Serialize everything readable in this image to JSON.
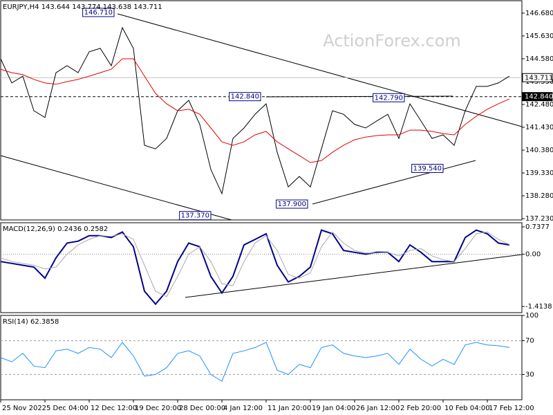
{
  "watermark": "ActionForex.com",
  "chart_data": [
    {
      "type": "line",
      "title": "EURJPY,H4  143.644 143.774 143.638 143.711",
      "x": [
        0,
        4,
        8,
        12,
        16,
        20,
        24,
        28,
        32,
        36,
        40,
        44,
        48,
        52,
        56,
        60,
        64,
        68,
        72,
        76,
        80,
        84,
        88,
        92,
        96,
        100,
        104,
        108,
        112,
        116,
        120,
        124,
        128,
        132,
        136,
        140,
        144,
        148,
        152,
        156,
        160,
        164,
        168,
        172,
        176,
        180,
        184
      ],
      "xlim": [
        0,
        188.5
      ],
      "ylim": [
        137.17,
        147.25
      ],
      "yticks": [
        {
          "value": 146.68,
          "label": "146.680"
        },
        {
          "value": 145.63,
          "label": "145.630"
        },
        {
          "value": 144.58,
          "label": "144.580"
        },
        {
          "value": 143.53,
          "label": "143.530"
        },
        {
          "value": 142.48,
          "label": "142.480"
        },
        {
          "value": 141.43,
          "label": "141.430"
        },
        {
          "value": 140.38,
          "label": "140.380"
        },
        {
          "value": 139.33,
          "label": "139.330"
        },
        {
          "value": 138.28,
          "label": "138.280"
        },
        {
          "value": 137.23,
          "label": "137.230"
        }
      ],
      "series": [
        {
          "color": "#000000",
          "width": 1,
          "values": [
            144.58,
            143.47,
            143.78,
            142.19,
            141.88,
            143.94,
            144.26,
            143.94,
            144.9,
            145.06,
            144.26,
            146.01,
            145.06,
            140.6,
            140.44,
            140.92,
            142.19,
            142.67,
            141.56,
            139.49,
            138.38,
            140.92,
            141.4,
            142.03,
            142.51,
            140.28,
            138.69,
            139.17,
            138.69,
            140.44,
            142.19,
            142.03,
            141.56,
            141.4,
            141.72,
            142.03,
            140.92,
            142.51,
            141.72,
            140.92,
            141.08,
            140.6,
            142.19,
            143.31,
            143.31,
            143.47,
            143.78
          ]
        },
        {
          "color": "#e00000",
          "width": 1,
          "values": [
            144.1,
            143.94,
            143.85,
            143.63,
            143.47,
            143.41,
            143.53,
            143.63,
            143.78,
            143.94,
            144.1,
            144.58,
            144.58,
            143.78,
            142.99,
            142.51,
            142.19,
            142.26,
            142.03,
            141.4,
            140.76,
            140.6,
            140.76,
            141.08,
            141.24,
            140.76,
            140.44,
            140.13,
            139.81,
            139.9,
            140.28,
            140.6,
            140.86,
            140.98,
            141.05,
            141.08,
            141.08,
            141.3,
            141.3,
            141.24,
            141.14,
            141.08,
            141.56,
            141.94,
            142.26,
            142.51,
            142.73
          ]
        }
      ],
      "price_markers": [
        {
          "value": 143.711,
          "label": "143.711",
          "style": "current"
        },
        {
          "value": 142.84,
          "label": "142.840",
          "style": "level"
        }
      ],
      "annotations": [
        {
          "x": 43,
          "value": 146.71,
          "label": "146.710"
        },
        {
          "x": 96,
          "value": 142.84,
          "label": "142.840"
        },
        {
          "x": 148,
          "value": 142.79,
          "label": "142.790"
        },
        {
          "x": 162,
          "value": 139.54,
          "label": "139.540"
        },
        {
          "x": 113,
          "value": 137.9,
          "label": "137.900"
        },
        {
          "x": 78,
          "value": 137.37,
          "label": "137.370"
        }
      ]
    },
    {
      "type": "line",
      "title": "MACD(12,26,9) 0.2436 0.2582",
      "x": [
        0,
        4,
        8,
        12,
        16,
        20,
        24,
        28,
        32,
        36,
        40,
        44,
        48,
        52,
        56,
        60,
        64,
        68,
        72,
        76,
        80,
        84,
        88,
        92,
        96,
        100,
        104,
        108,
        112,
        116,
        120,
        124,
        128,
        132,
        136,
        140,
        144,
        148,
        152,
        156,
        160,
        164,
        168,
        172,
        176,
        180,
        184
      ],
      "xlim": [
        0,
        188.5
      ],
      "ylim": [
        -1.58,
        0.85
      ],
      "yticks": [
        0.7377,
        {
          "value": 0,
          "label": "0.00"
        },
        -1.4138
      ],
      "zero_line": true,
      "series": [
        {
          "color": "#00008b",
          "width": 2,
          "values": [
            -0.2,
            -0.25,
            -0.3,
            -0.35,
            -0.65,
            -0.1,
            0.3,
            0.35,
            0.5,
            0.5,
            0.45,
            0.6,
            0.2,
            -1.0,
            -1.35,
            -1.0,
            -0.2,
            0.3,
            0.2,
            -0.6,
            -1.05,
            -0.6,
            0.25,
            0.4,
            0.55,
            -0.3,
            -0.75,
            -0.6,
            -0.35,
            0.65,
            0.55,
            0.1,
            0.05,
            0.0,
            0.05,
            0.05,
            -0.2,
            0.25,
            0.05,
            -0.2,
            -0.2,
            -0.2,
            0.45,
            0.65,
            0.55,
            0.3,
            0.25
          ]
        },
        {
          "color": "#a9a9a9",
          "width": 1,
          "values": [
            -0.1,
            -0.2,
            -0.25,
            -0.3,
            -0.4,
            -0.35,
            0.0,
            0.25,
            0.4,
            0.5,
            0.48,
            0.55,
            0.4,
            -0.3,
            -1.0,
            -1.15,
            -0.6,
            0.0,
            0.2,
            -0.2,
            -0.8,
            -0.85,
            -0.2,
            0.3,
            0.5,
            0.1,
            -0.55,
            -0.65,
            -0.5,
            0.2,
            0.6,
            0.3,
            0.1,
            0.03,
            0.03,
            0.05,
            -0.05,
            0.1,
            0.15,
            -0.05,
            -0.15,
            -0.2,
            0.15,
            0.55,
            0.6,
            0.4,
            0.26
          ]
        }
      ]
    },
    {
      "type": "line",
      "title": "RSI(14) 62.3858",
      "x": [
        0,
        4,
        8,
        12,
        16,
        20,
        24,
        28,
        32,
        36,
        40,
        44,
        48,
        52,
        56,
        60,
        64,
        68,
        72,
        76,
        80,
        84,
        88,
        92,
        96,
        100,
        104,
        108,
        112,
        116,
        120,
        124,
        128,
        132,
        136,
        140,
        144,
        148,
        152,
        156,
        160,
        164,
        168,
        172,
        176,
        180,
        184
      ],
      "xlim": [
        0,
        188.5
      ],
      "ylim": [
        0,
        100
      ],
      "yticks": [
        100,
        70,
        30
      ],
      "grid": "dashed",
      "xticks": [
        {
          "value": 0,
          "label": "25 Nov 2022"
        },
        {
          "value": 16,
          "label": "5 Dec 04:00"
        },
        {
          "value": 32,
          "label": "12 Dec 12:00"
        },
        {
          "value": 48,
          "label": "19 Dec 20:00"
        },
        {
          "value": 64,
          "label": "28 Dec 00:00"
        },
        {
          "value": 80,
          "label": "4 Jan 12:00"
        },
        {
          "value": 96,
          "label": "11 Jan 20:00"
        },
        {
          "value": 112,
          "label": "19 Jan 04:00"
        },
        {
          "value": 128,
          "label": "26 Jan 12:00"
        },
        {
          "value": 144,
          "label": "2 Feb 20:00"
        },
        {
          "value": 160,
          "label": "10 Feb 04:00"
        },
        {
          "value": 176,
          "label": "17 Feb 12:00"
        }
      ],
      "series": [
        {
          "color": "#1e90ff",
          "width": 1,
          "values": [
            50,
            45,
            55,
            40,
            38,
            58,
            60,
            55,
            62,
            60,
            50,
            68,
            52,
            28,
            30,
            38,
            55,
            58,
            52,
            30,
            22,
            55,
            58,
            62,
            68,
            35,
            30,
            42,
            38,
            62,
            65,
            55,
            52,
            50,
            52,
            55,
            42,
            60,
            48,
            40,
            48,
            42,
            65,
            68,
            65,
            64,
            62
          ]
        }
      ]
    }
  ]
}
